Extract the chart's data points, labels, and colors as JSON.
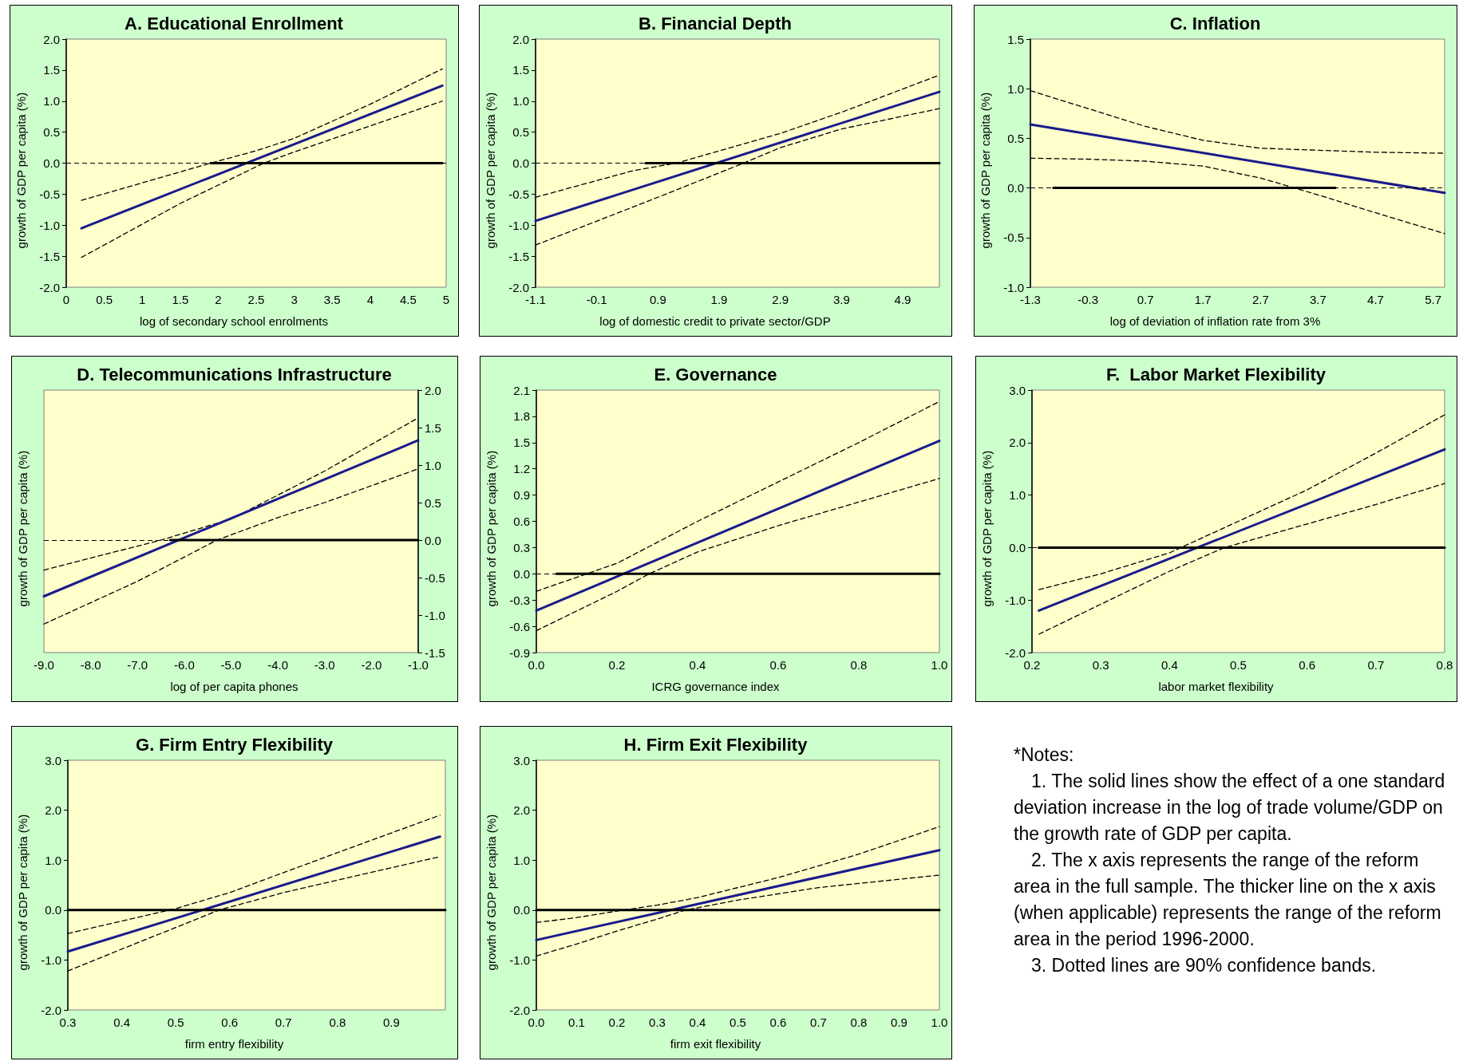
{
  "chart_data": [
    {
      "type": "line",
      "title": "A. Educational Enrollment",
      "xlabel": "log of secondary school enrolments",
      "ylabel": "growth of GDP per capita (%)",
      "marker": "none",
      "xlim": [
        0,
        5
      ],
      "xticks": [
        {
          "value": 0,
          "label": "0"
        },
        0.5,
        1,
        1.5,
        2,
        2.5,
        3,
        3.5,
        4,
        4.5,
        5
      ],
      "ylim": [
        -2,
        2
      ],
      "yticks": [
        {
          "value": -2,
          "label": "-2.0"
        },
        -1.5,
        {
          "value": -1,
          "label": "-1.0"
        },
        -0.5,
        {
          "value": 0,
          "label": "0.0"
        },
        0.5,
        {
          "value": 1,
          "label": "1.0"
        },
        1.5,
        {
          "value": 2,
          "label": "2.0"
        }
      ],
      "ref_lines": [
        {
          "axis": "y",
          "value": 0,
          "color": "#000000",
          "line_style": "dashed"
        }
      ],
      "series": [
        {
          "color": "#1a1a8c",
          "line_style": "solid",
          "x": [
            0.2,
            4.95
          ],
          "values": [
            -1.05,
            1.25
          ]
        },
        {
          "color": "#000000",
          "line_style": "dashed",
          "x": [
            0.2,
            1.9,
            2.5,
            3,
            4,
            4.95
          ],
          "values": [
            -0.6,
            0.0,
            0.2,
            0.4,
            0.95,
            1.52
          ]
        },
        {
          "color": "#000000",
          "line_style": "dashed",
          "x": [
            0.2,
            1.5,
            2.6,
            3,
            4,
            4.95
          ],
          "values": [
            -1.52,
            -0.65,
            0.0,
            0.18,
            0.6,
            1.0
          ]
        },
        {
          "color": "#000000",
          "line_style": "solid",
          "x": [
            1.9,
            4.95
          ],
          "values": [
            0,
            0
          ]
        }
      ]
    },
    {
      "type": "line",
      "title": "B. Financial Depth",
      "xlabel": "log of domestic credit to private sector/GDP",
      "ylabel": "growth of GDP per capita (%)",
      "marker": "none",
      "xlim": [
        -1.1,
        5.5
      ],
      "xticks": [
        -1.1,
        -0.1,
        0.9,
        1.9,
        2.9,
        3.9,
        4.9
      ],
      "ylim": [
        -2,
        2
      ],
      "yticks": [
        {
          "value": -2,
          "label": "-2.0"
        },
        -1.5,
        {
          "value": -1,
          "label": "-1.0"
        },
        -0.5,
        {
          "value": 0,
          "label": "0.0"
        },
        0.5,
        {
          "value": 1,
          "label": "1.0"
        },
        1.5,
        {
          "value": 2,
          "label": "2.0"
        }
      ],
      "ref_lines": [
        {
          "axis": "y",
          "value": 0,
          "color": "#000000",
          "line_style": "dashed"
        }
      ],
      "series": [
        {
          "color": "#1a1a8c",
          "line_style": "solid",
          "x": [
            -1.1,
            5.5
          ],
          "values": [
            -0.93,
            1.15
          ]
        },
        {
          "color": "#000000",
          "line_style": "dashed",
          "x": [
            -1.1,
            0.5,
            1.2,
            2.9,
            3.9,
            5.5
          ],
          "values": [
            -0.55,
            -0.12,
            0.0,
            0.48,
            0.82,
            1.42
          ]
        },
        {
          "color": "#000000",
          "line_style": "dashed",
          "x": [
            -1.1,
            0.9,
            2.3,
            2.9,
            3.9,
            5.5
          ],
          "values": [
            -1.32,
            -0.55,
            0.0,
            0.25,
            0.55,
            0.88
          ]
        },
        {
          "color": "#000000",
          "line_style": "solid",
          "x": [
            0.7,
            5.5
          ],
          "values": [
            0,
            0
          ]
        }
      ]
    },
    {
      "type": "line",
      "title": "C. Inflation",
      "xlabel": "log of deviation of inflation rate from 3%",
      "ylabel": "growth of GDP per capita (%)",
      "marker": "none",
      "xlim": [
        -1.3,
        5.9
      ],
      "xticks": [
        -1.3,
        -0.3,
        0.7,
        1.7,
        2.7,
        3.7,
        4.7,
        5.7
      ],
      "ylim": [
        -1,
        1.5
      ],
      "yticks": [
        {
          "value": -1,
          "label": "-1.0"
        },
        -0.5,
        {
          "value": 0,
          "label": "0.0"
        },
        0.5,
        {
          "value": 1,
          "label": "1.0"
        },
        1.5
      ],
      "ref_lines": [
        {
          "axis": "y",
          "value": 0,
          "color": "#000000",
          "line_style": "dashed"
        }
      ],
      "series": [
        {
          "color": "#1a1a8c",
          "line_style": "solid",
          "x": [
            -1.3,
            5.9
          ],
          "values": [
            0.64,
            -0.05
          ]
        },
        {
          "color": "#000000",
          "line_style": "dashed",
          "x": [
            -1.3,
            -0.3,
            0.7,
            1.7,
            2.7,
            3.7,
            4.7,
            5.9
          ],
          "values": [
            0.98,
            0.8,
            0.62,
            0.48,
            0.4,
            0.38,
            0.36,
            0.35
          ]
        },
        {
          "color": "#000000",
          "line_style": "dashed",
          "x": [
            -1.3,
            -0.3,
            0.7,
            1.7,
            2.7,
            3.7,
            4.7,
            5.9
          ],
          "values": [
            0.3,
            0.29,
            0.27,
            0.22,
            0.1,
            -0.07,
            -0.25,
            -0.46
          ]
        },
        {
          "color": "#000000",
          "line_style": "solid",
          "x": [
            -0.9,
            4.0
          ],
          "values": [
            0,
            0
          ]
        }
      ]
    },
    {
      "type": "line",
      "title": "D. Telecommunications Infrastructure",
      "xlabel": "log of per capita phones",
      "ylabel": "growth of GDP per capita (%)",
      "marker": "none",
      "xlim": [
        -9,
        -1
      ],
      "xticks": [
        {
          "value": -9,
          "label": "-9.0"
        },
        {
          "value": -8,
          "label": "-8.0"
        },
        {
          "value": -7,
          "label": "-7.0"
        },
        {
          "value": -6,
          "label": "-6.0"
        },
        {
          "value": -5,
          "label": "-5.0"
        },
        {
          "value": -4,
          "label": "-4.0"
        },
        {
          "value": -3,
          "label": "-3.0"
        },
        {
          "value": -2,
          "label": "-2.0"
        },
        {
          "value": -1,
          "label": "-1.0"
        }
      ],
      "ylim": [
        -1.5,
        2
      ],
      "yticks": [
        -1.5,
        {
          "value": -1,
          "label": "-1.0"
        },
        -0.5,
        {
          "value": 0,
          "label": "0.0"
        },
        0.5,
        {
          "value": 1,
          "label": "1.0"
        },
        1.5,
        {
          "value": 2,
          "label": "2.0"
        }
      ],
      "ref_lines": [
        {
          "axis": "y",
          "value": 0,
          "color": "#000000",
          "line_style": "dashed"
        }
      ],
      "series": [
        {
          "color": "#1a1a8c",
          "line_style": "solid",
          "x": [
            -9,
            -1
          ],
          "values": [
            -0.75,
            1.33
          ]
        },
        {
          "color": "#000000",
          "line_style": "dashed",
          "x": [
            -9,
            -7,
            -6.5,
            -5,
            -3,
            -1
          ],
          "values": [
            -0.4,
            -0.08,
            0.0,
            0.28,
            0.92,
            1.63
          ]
        },
        {
          "color": "#000000",
          "line_style": "dashed",
          "x": [
            -9,
            -7,
            -5.3,
            -4,
            -3,
            -1
          ],
          "values": [
            -1.12,
            -0.55,
            0.0,
            0.3,
            0.5,
            0.95
          ]
        },
        {
          "color": "#000000",
          "line_style": "solid",
          "x": [
            -6.3,
            -1
          ],
          "values": [
            0,
            0
          ]
        }
      ]
    },
    {
      "type": "line",
      "title": "E. Governance",
      "xlabel": "ICRG governance index",
      "ylabel": "growth of GDP per capita (%)",
      "marker": "none",
      "xlim": [
        0,
        1
      ],
      "xticks": [
        {
          "value": 0,
          "label": "0.0"
        },
        0.2,
        0.4,
        0.6,
        0.8,
        {
          "value": 1,
          "label": "1.0"
        }
      ],
      "ylim": [
        -0.9,
        2.1
      ],
      "yticks": [
        -0.9,
        -0.6,
        -0.3,
        {
          "value": 0,
          "label": "0.0"
        },
        0.3,
        0.6,
        0.9,
        1.2,
        1.5,
        1.8,
        2.1
      ],
      "ref_lines": [
        {
          "axis": "y",
          "value": 0,
          "color": "#000000",
          "line_style": "dashed"
        }
      ],
      "series": [
        {
          "color": "#1a1a8c",
          "line_style": "solid",
          "x": [
            0,
            1
          ],
          "values": [
            -0.42,
            1.52
          ]
        },
        {
          "color": "#000000",
          "line_style": "dashed",
          "x": [
            0,
            0.2,
            0.4,
            0.6,
            0.8,
            1
          ],
          "values": [
            -0.2,
            0.12,
            0.6,
            1.05,
            1.5,
            1.97
          ]
        },
        {
          "color": "#000000",
          "line_style": "dashed",
          "x": [
            0,
            0.2,
            0.28,
            0.4,
            0.6,
            0.8,
            1
          ],
          "values": [
            -0.65,
            -0.2,
            0.0,
            0.25,
            0.55,
            0.82,
            1.09
          ]
        },
        {
          "color": "#000000",
          "line_style": "solid",
          "x": [
            0.05,
            1
          ],
          "values": [
            0,
            0
          ]
        }
      ]
    },
    {
      "type": "line",
      "title": "F.  Labor Market Flexibility",
      "xlabel": "labor market flexibility",
      "ylabel": "growth of GDP per capita (%)",
      "marker": "none",
      "xlim": [
        0.2,
        0.8
      ],
      "xticks": [
        0.2,
        0.3,
        0.4,
        0.5,
        0.6,
        0.7,
        0.8
      ],
      "ylim": [
        -2,
        3
      ],
      "yticks": [
        {
          "value": -2,
          "label": "-2.0"
        },
        {
          "value": -1,
          "label": "-1.0"
        },
        {
          "value": 0,
          "label": "0.0"
        },
        {
          "value": 1,
          "label": "1.0"
        },
        {
          "value": 2,
          "label": "2.0"
        },
        {
          "value": 3,
          "label": "3.0"
        }
      ],
      "ref_lines": [
        {
          "axis": "y",
          "value": 0,
          "color": "#000000",
          "line_style": "dashed"
        }
      ],
      "series": [
        {
          "color": "#1a1a8c",
          "line_style": "solid",
          "x": [
            0.21,
            0.8
          ],
          "values": [
            -1.2,
            1.87
          ]
        },
        {
          "color": "#000000",
          "line_style": "dashed",
          "x": [
            0.21,
            0.3,
            0.4,
            0.5,
            0.6,
            0.7,
            0.8
          ],
          "values": [
            -0.8,
            -0.5,
            -0.1,
            0.5,
            1.1,
            1.8,
            2.53
          ]
        },
        {
          "color": "#000000",
          "line_style": "dashed",
          "x": [
            0.21,
            0.3,
            0.4,
            0.48,
            0.6,
            0.7,
            0.8
          ],
          "values": [
            -1.65,
            -1.08,
            -0.45,
            0.0,
            0.45,
            0.82,
            1.22
          ]
        },
        {
          "color": "#000000",
          "line_style": "solid",
          "x": [
            0.21,
            0.8
          ],
          "values": [
            0,
            0
          ]
        }
      ]
    },
    {
      "type": "line",
      "title": "G. Firm Entry Flexibility",
      "xlabel": "firm entry flexibility",
      "ylabel": "growth of GDP per capita (%)",
      "marker": "none",
      "xlim": [
        0.3,
        1.0
      ],
      "xticks": [
        0.3,
        0.4,
        0.5,
        0.6,
        0.7,
        0.8,
        0.9
      ],
      "ylim": [
        -2,
        3
      ],
      "yticks": [
        {
          "value": -2,
          "label": "-2.0"
        },
        {
          "value": -1,
          "label": "-1.0"
        },
        {
          "value": 0,
          "label": "0.0"
        },
        {
          "value": 1,
          "label": "1.0"
        },
        {
          "value": 2,
          "label": "2.0"
        },
        {
          "value": 3,
          "label": "3.0"
        }
      ],
      "series": [
        {
          "color": "#1a1a8c",
          "line_style": "solid",
          "x": [
            0.3,
            0.99
          ],
          "values": [
            -0.83,
            1.47
          ]
        },
        {
          "color": "#000000",
          "line_style": "dashed",
          "x": [
            0.3,
            0.4,
            0.5,
            0.6,
            0.7,
            0.8,
            0.99
          ],
          "values": [
            -0.47,
            -0.22,
            0.03,
            0.35,
            0.75,
            1.15,
            1.9
          ]
        },
        {
          "color": "#000000",
          "line_style": "dashed",
          "x": [
            0.3,
            0.4,
            0.5,
            0.58,
            0.7,
            0.8,
            0.99
          ],
          "values": [
            -1.22,
            -0.78,
            -0.35,
            0.0,
            0.35,
            0.6,
            1.07
          ]
        },
        {
          "color": "#000000",
          "line_style": "solid",
          "x": [
            0.3,
            1.0
          ],
          "values": [
            0,
            0
          ]
        }
      ]
    },
    {
      "type": "line",
      "title": "H. Firm Exit Flexibility",
      "xlabel": "firm exit flexibility",
      "ylabel": "growth of GDP per capita (%)",
      "marker": "none",
      "xlim": [
        0,
        1
      ],
      "xticks": [
        {
          "value": 0,
          "label": "0.0"
        },
        0.1,
        0.2,
        0.3,
        0.4,
        0.5,
        0.6,
        0.7,
        0.8,
        0.9,
        {
          "value": 1,
          "label": "1.0"
        }
      ],
      "ylim": [
        -2,
        3
      ],
      "yticks": [
        {
          "value": -2,
          "label": "-2.0"
        },
        {
          "value": -1,
          "label": "-1.0"
        },
        {
          "value": 0,
          "label": "0.0"
        },
        {
          "value": 1,
          "label": "1.0"
        },
        {
          "value": 2,
          "label": "2.0"
        },
        {
          "value": 3,
          "label": "3.0"
        }
      ],
      "series": [
        {
          "color": "#1a1a8c",
          "line_style": "solid",
          "x": [
            0,
            1
          ],
          "values": [
            -0.6,
            1.2
          ]
        },
        {
          "color": "#000000",
          "line_style": "dashed",
          "x": [
            0,
            0.1,
            0.2,
            0.3,
            0.4,
            0.6,
            0.8,
            1
          ],
          "values": [
            -0.25,
            -0.15,
            -0.02,
            0.1,
            0.25,
            0.65,
            1.12,
            1.67
          ]
        },
        {
          "color": "#000000",
          "line_style": "dashed",
          "x": [
            0,
            0.1,
            0.2,
            0.3,
            0.37,
            0.5,
            0.7,
            1
          ],
          "values": [
            -0.92,
            -0.68,
            -0.42,
            -0.18,
            0.0,
            0.2,
            0.45,
            0.7
          ]
        },
        {
          "color": "#000000",
          "line_style": "solid",
          "x": [
            0,
            1
          ],
          "values": [
            0,
            0
          ]
        }
      ]
    },
    {
      "type": "other",
      "title": "*Notes:",
      "annotations": [
        "1. The solid lines show the effect of a one standard deviation increase in the log of trade volume/GDP on the growth rate of GDP per capita.",
        "2. The x axis represents the range of the reform area in the full sample. The thicker line on the x axis (when applicable) represents the range of the reform area in the period 1996-2000.",
        "3. Dotted lines are 90% confidence bands."
      ]
    }
  ]
}
